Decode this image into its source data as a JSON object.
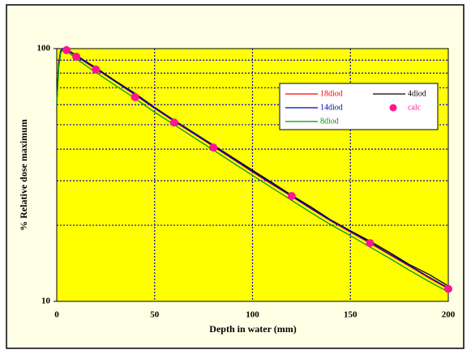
{
  "chart_data": {
    "type": "line",
    "xlabel": "Depth in water (mm)",
    "ylabel": "% Relative dose maximum",
    "xlim": [
      0,
      200
    ],
    "xticks": [
      0,
      50,
      100,
      150,
      200
    ],
    "ylim": [
      10,
      100
    ],
    "yticks": [
      10,
      100
    ],
    "ylog": true,
    "yminor": [
      20,
      30,
      40,
      50,
      60,
      70,
      80,
      90
    ],
    "grid": true,
    "legend": "upper right",
    "series": [
      {
        "name": "18diod",
        "color": "#ff0000",
        "style": "line",
        "x": [
          0,
          1,
          2,
          3,
          5,
          10,
          20,
          30,
          40,
          50,
          60,
          70,
          80,
          90,
          100,
          110,
          120,
          130,
          140,
          150,
          160,
          170,
          180,
          190,
          200
        ],
        "values": [
          60,
          85,
          97,
          100,
          99,
          93,
          83,
          74,
          65.5,
          58,
          51.5,
          46,
          41,
          36.5,
          32.5,
          29,
          26,
          23.2,
          20.8,
          18.8,
          17,
          15.3,
          13.8,
          12.4,
          11.2
        ]
      },
      {
        "name": "4diod",
        "color": "#000000",
        "style": "line",
        "x": [
          0,
          1,
          2,
          3,
          5,
          10,
          20,
          30,
          40,
          50,
          60,
          70,
          80,
          90,
          100,
          110,
          120,
          130,
          140,
          150,
          160,
          170,
          180,
          190,
          200
        ],
        "values": [
          62,
          88,
          98,
          100,
          99.5,
          94,
          84,
          74.5,
          66.5,
          58.5,
          52,
          46.5,
          41.5,
          37,
          33,
          29.5,
          26.3,
          23.6,
          21,
          19,
          17.3,
          15.6,
          14,
          12.8,
          11.5
        ]
      },
      {
        "name": "14diod",
        "color": "#0000cc",
        "style": "line",
        "x": [
          0,
          1,
          2,
          3,
          5,
          10,
          20,
          30,
          40,
          50,
          60,
          70,
          80,
          90,
          100,
          110,
          120,
          130,
          140,
          150,
          160,
          170,
          180,
          190,
          200
        ],
        "values": [
          61,
          86,
          97.5,
          100,
          99,
          93.5,
          83.5,
          74,
          66,
          58.2,
          51.8,
          46.2,
          41.2,
          36.7,
          32.7,
          29.2,
          26.1,
          23.3,
          20.9,
          18.9,
          17.1,
          15.4,
          13.9,
          12.5,
          11.3
        ]
      },
      {
        "name": "8diod",
        "color": "#009900",
        "style": "line",
        "x": [
          0,
          1,
          2,
          3,
          5,
          10,
          20,
          30,
          40,
          50,
          60,
          70,
          80,
          90,
          100,
          110,
          120,
          130,
          140,
          150,
          160,
          170,
          180,
          190,
          200
        ],
        "values": [
          60,
          84,
          96,
          99,
          98,
          91,
          80.5,
          71.5,
          63.5,
          56,
          50,
          44.5,
          39.7,
          35.3,
          31.5,
          28.1,
          25.1,
          22.4,
          20.1,
          18.2,
          16.4,
          14.8,
          13.3,
          12,
          10.9
        ]
      },
      {
        "name": "calc",
        "color": "#ff1493",
        "style": "marker",
        "x": [
          5,
          10,
          20,
          40,
          60,
          80,
          120,
          160,
          200
        ],
        "values": [
          98.6,
          92.9,
          82.6,
          64.3,
          51,
          40.6,
          26.1,
          17,
          11.2
        ]
      }
    ]
  }
}
